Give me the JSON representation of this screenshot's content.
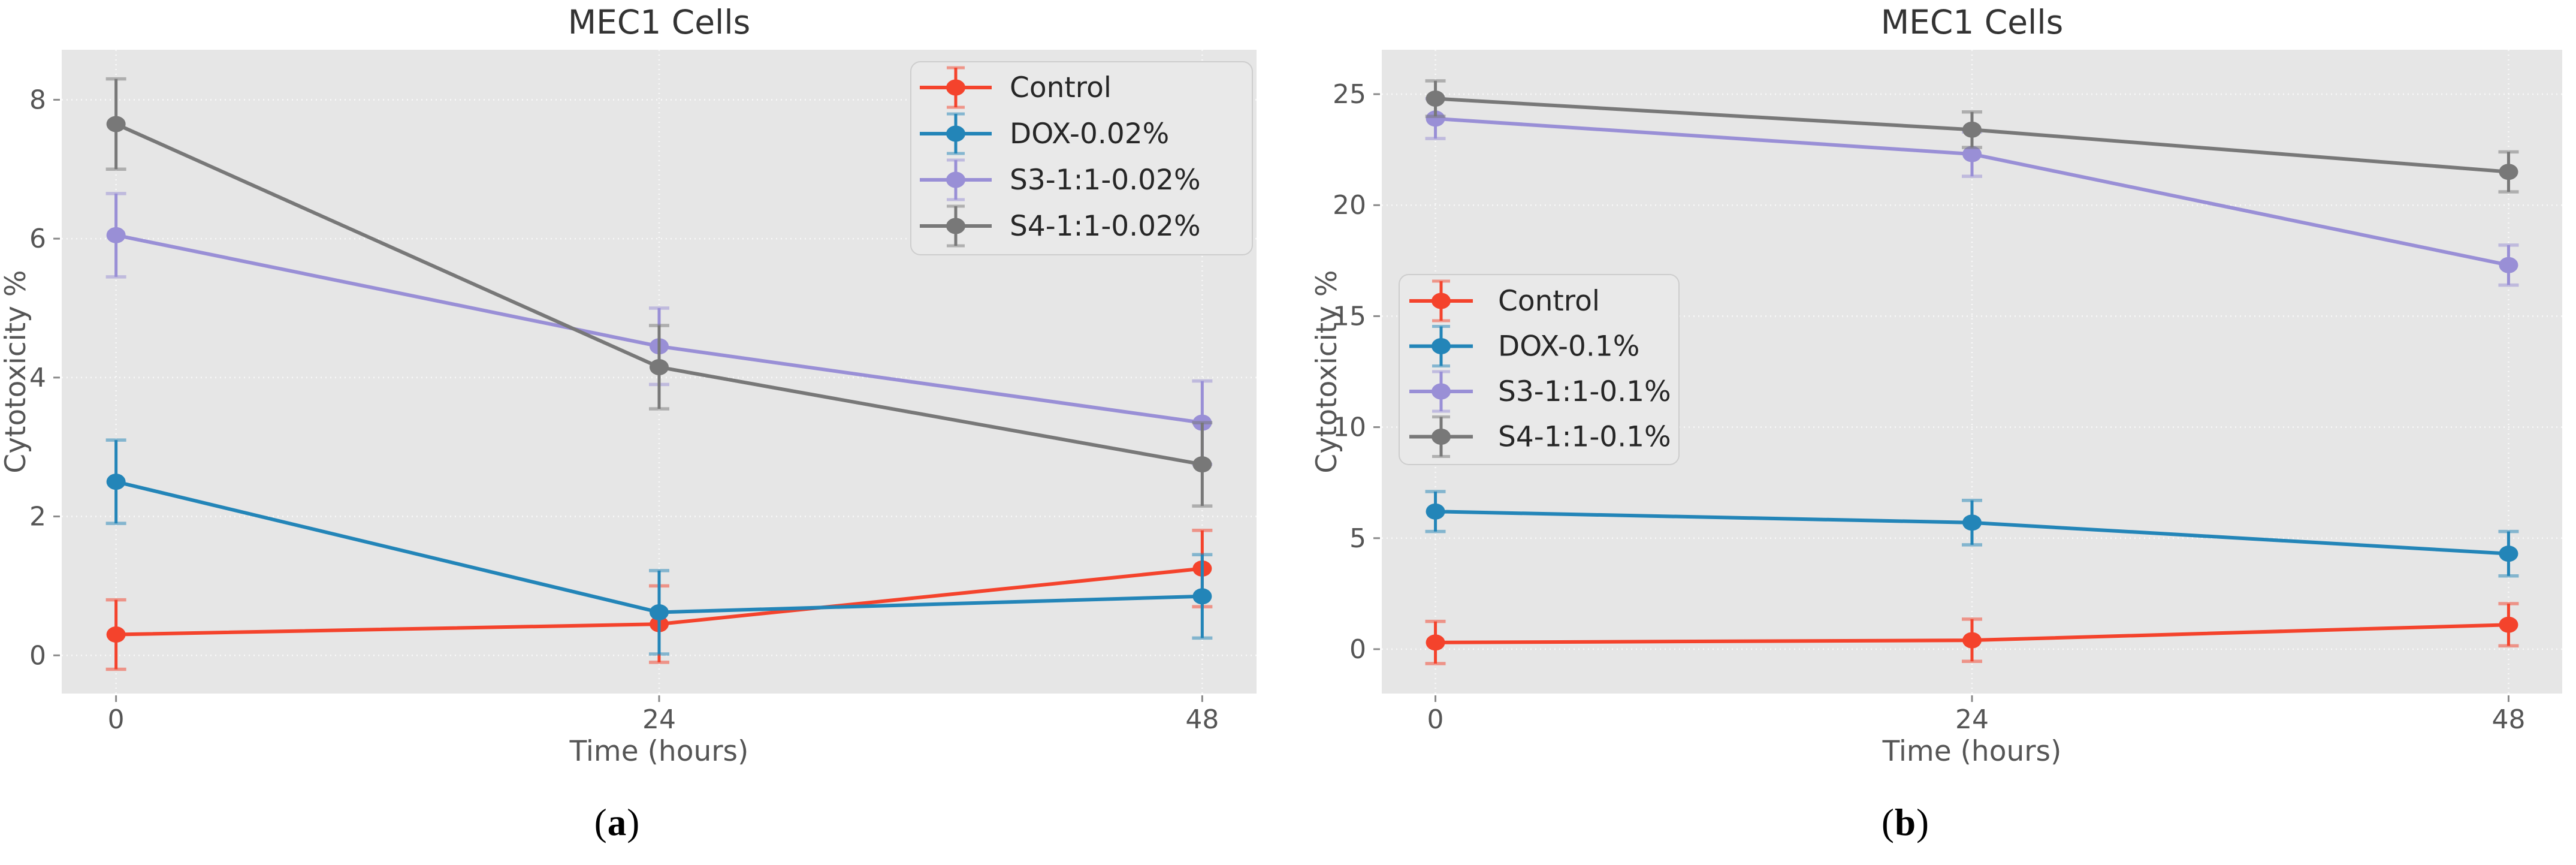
{
  "figure": {
    "captions": [
      {
        "id": "a",
        "text": "(a)"
      },
      {
        "id": "b",
        "text": "(b)"
      }
    ],
    "background_color": "#ffffff"
  },
  "chart_data": [
    {
      "type": "line",
      "title": "MEC1 Cells",
      "xlabel": "Time (hours)",
      "ylabel": "Cytotoxicity %",
      "x": [
        0,
        24,
        48
      ],
      "xticklabels": [
        "0",
        "24",
        "48"
      ],
      "yticks": [
        0,
        2,
        4,
        6,
        8
      ],
      "yticklabels": [
        "0",
        "2",
        "4",
        "6",
        "8"
      ],
      "xlim": [
        -2.4,
        50.4
      ],
      "ylim": [
        -0.55,
        8.72
      ],
      "grid": true,
      "legend_position": "upper right",
      "plot_bg_color": "#e6e6e6",
      "grid_color": "#fafafa",
      "tick_text_color": "#555555",
      "title_color": "#333333",
      "series": [
        {
          "name": "Control",
          "color": "#f4432c",
          "values": [
            0.3,
            0.45,
            1.25
          ],
          "errors": [
            0.5,
            0.55,
            0.55
          ]
        },
        {
          "name": "DOX-0.02%",
          "color": "#2385b8",
          "values": [
            2.5,
            0.62,
            0.85
          ],
          "errors": [
            0.6,
            0.6,
            0.6
          ]
        },
        {
          "name": "S3-1:1-0.02%",
          "color": "#998fd6",
          "values": [
            6.05,
            4.45,
            3.35
          ],
          "errors": [
            0.6,
            0.55,
            0.6
          ]
        },
        {
          "name": "S4-1:1-0.02%",
          "color": "#787878",
          "values": [
            7.65,
            4.15,
            2.75
          ],
          "errors": [
            0.65,
            0.6,
            0.6
          ]
        }
      ]
    },
    {
      "type": "line",
      "title": "MEC1 Cells",
      "xlabel": "Time (hours)",
      "ylabel": "Cytotoxicity %",
      "x": [
        0,
        24,
        48
      ],
      "xticklabels": [
        "0",
        "24",
        "48"
      ],
      "yticks": [
        0,
        5,
        10,
        15,
        20,
        25
      ],
      "yticklabels": [
        "0",
        "5",
        "10",
        "15",
        "20",
        "25"
      ],
      "xlim": [
        -2.4,
        50.4
      ],
      "ylim": [
        -2.0,
        27.0
      ],
      "grid": true,
      "legend_position": "center left",
      "plot_bg_color": "#e6e6e6",
      "grid_color": "#fafafa",
      "tick_text_color": "#555555",
      "title_color": "#333333",
      "series": [
        {
          "name": "Control",
          "color": "#f4432c",
          "values": [
            0.3,
            0.4,
            1.1
          ],
          "errors": [
            0.95,
            0.95,
            0.95
          ]
        },
        {
          "name": "DOX-0.1%",
          "color": "#2385b8",
          "values": [
            6.2,
            5.7,
            4.3
          ],
          "errors": [
            0.9,
            1.0,
            1.0
          ]
        },
        {
          "name": "S3-1:1-0.1%",
          "color": "#998fd6",
          "values": [
            23.9,
            22.3,
            17.3
          ],
          "errors": [
            0.9,
            1.0,
            0.9
          ]
        },
        {
          "name": "S4-1:1-0.1%",
          "color": "#787878",
          "values": [
            24.8,
            23.4,
            21.5
          ],
          "errors": [
            0.8,
            0.8,
            0.9
          ]
        }
      ]
    }
  ]
}
